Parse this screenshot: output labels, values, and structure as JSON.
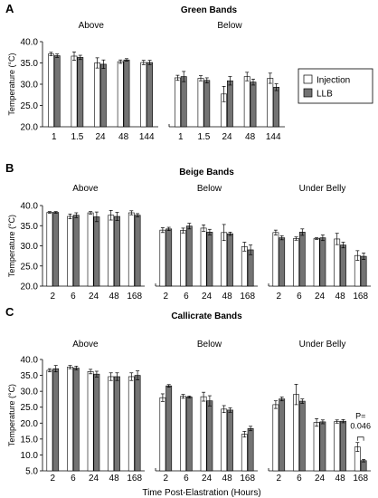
{
  "legend": {
    "items": [
      "Injection",
      "LLB"
    ],
    "colors": [
      "#ffffff",
      "#737373"
    ]
  },
  "xlabel": "Time Post-Elastration (Hours)",
  "chart_data": [
    {
      "type": "bar",
      "letter": "A",
      "title": "Green Bands",
      "ylabel": "Temperature (°C)",
      "ylim": [
        20,
        40
      ],
      "yticks": [
        "20.0",
        "25.0",
        "30.0",
        "35.0",
        "40.0"
      ],
      "grid": false,
      "legend_placement": "right",
      "groups": [
        {
          "name": "Above",
          "categories": [
            "1",
            "1.5",
            "24",
            "48",
            "144"
          ],
          "series": [
            {
              "name": "Injection",
              "values": [
                37.1,
                36.6,
                35.0,
                35.3,
                35.1
              ],
              "errors": [
                0.4,
                1.0,
                1.2,
                0.4,
                0.5
              ]
            },
            {
              "name": "LLB",
              "values": [
                36.7,
                36.3,
                34.7,
                35.7,
                35.1
              ],
              "errors": [
                0.4,
                0.5,
                1.0,
                0.3,
                0.5
              ]
            }
          ]
        },
        {
          "name": "Below",
          "categories": [
            "1",
            "1.5",
            "24",
            "48",
            "144"
          ],
          "series": [
            {
              "name": "Injection",
              "values": [
                31.5,
                31.4,
                27.7,
                31.8,
                31.4
              ],
              "errors": [
                0.6,
                0.6,
                1.8,
                1.0,
                1.2
              ]
            },
            {
              "name": "LLB",
              "values": [
                31.8,
                30.9,
                30.8,
                30.5,
                29.3
              ],
              "errors": [
                1.2,
                0.6,
                1.0,
                0.7,
                0.8
              ]
            }
          ]
        }
      ]
    },
    {
      "type": "bar",
      "letter": "B",
      "title": "Beige Bands",
      "ylabel": "Temperature (°C)",
      "ylim": [
        20,
        40
      ],
      "yticks": [
        "20.0",
        "25.0",
        "30.0",
        "35.0",
        "40.0"
      ],
      "grid": false,
      "groups": [
        {
          "name": "Above",
          "categories": [
            "2",
            "6",
            "24",
            "48",
            "168"
          ],
          "series": [
            {
              "name": "Injection",
              "values": [
                38.3,
                37.3,
                38.2,
                37.6,
                38.2
              ],
              "errors": [
                0.2,
                0.6,
                0.3,
                1.2,
                0.5
              ]
            },
            {
              "name": "LLB",
              "values": [
                38.3,
                37.6,
                37.2,
                37.3,
                37.6
              ],
              "errors": [
                0.2,
                0.6,
                1.2,
                1.0,
                0.4
              ]
            }
          ]
        },
        {
          "name": "Below",
          "categories": [
            "2",
            "6",
            "24",
            "48",
            "168"
          ],
          "series": [
            {
              "name": "Injection",
              "values": [
                33.9,
                33.8,
                34.4,
                33.3,
                29.8
              ],
              "errors": [
                0.6,
                0.6,
                0.8,
                2.0,
                1.1
              ]
            },
            {
              "name": "LLB",
              "values": [
                34.2,
                34.9,
                33.4,
                33.0,
                29.0
              ],
              "errors": [
                0.4,
                0.7,
                0.7,
                0.4,
                1.2
              ]
            }
          ]
        },
        {
          "name": "Under Belly",
          "categories": [
            "2",
            "6",
            "24",
            "48",
            "168"
          ],
          "series": [
            {
              "name": "Injection",
              "values": [
                33.3,
                31.8,
                31.8,
                31.7,
                27.6
              ],
              "errors": [
                0.6,
                0.4,
                0.2,
                1.4,
                1.2
              ]
            },
            {
              "name": "LLB",
              "values": [
                32.0,
                33.4,
                32.0,
                30.2,
                27.4
              ],
              "errors": [
                0.5,
                0.8,
                0.7,
                0.7,
                0.8
              ]
            }
          ]
        }
      ]
    },
    {
      "type": "bar",
      "letter": "C",
      "title": "Callicrate Bands",
      "ylabel": "Temperature (°C)",
      "ylim": [
        5,
        40
      ],
      "yticks": [
        "5.0",
        "10.0",
        "15.0",
        "20.0",
        "25.0",
        "30.0",
        "35.0",
        "40.0"
      ],
      "grid": false,
      "groups": [
        {
          "name": "Above",
          "categories": [
            "2",
            "6",
            "24",
            "48",
            "168"
          ],
          "series": [
            {
              "name": "Injection",
              "values": [
                36.6,
                37.6,
                36.2,
                34.6,
                34.6
              ],
              "errors": [
                0.5,
                0.5,
                0.7,
                1.2,
                1.2
              ]
            },
            {
              "name": "LLB",
              "values": [
                37.1,
                37.3,
                35.4,
                34.6,
                35.0
              ],
              "errors": [
                1.0,
                0.6,
                0.9,
                1.2,
                1.4
              ]
            }
          ]
        },
        {
          "name": "Below",
          "categories": [
            "2",
            "6",
            "24",
            "48",
            "168"
          ],
          "series": [
            {
              "name": "Injection",
              "values": [
                28.0,
                28.4,
                28.3,
                24.4,
                16.5
              ],
              "errors": [
                1.2,
                0.6,
                1.4,
                1.1,
                0.9
              ]
            },
            {
              "name": "LLB",
              "values": [
                31.7,
                28.2,
                27.0,
                24.1,
                18.3
              ],
              "errors": [
                0.4,
                0.3,
                1.6,
                0.7,
                0.7
              ]
            }
          ]
        },
        {
          "name": "Under Belly",
          "categories": [
            "2",
            "6",
            "24",
            "48",
            "168"
          ],
          "series": [
            {
              "name": "Injection",
              "values": [
                25.8,
                29.0,
                20.2,
                20.5,
                12.5
              ],
              "errors": [
                1.2,
                3.2,
                1.2,
                0.5,
                1.4
              ]
            },
            {
              "name": "LLB",
              "values": [
                27.6,
                26.9,
                20.4,
                20.6,
                8.2
              ],
              "errors": [
                0.6,
                0.7,
                0.6,
                0.5,
                0.4
              ]
            }
          ]
        }
      ],
      "annotation": {
        "text": [
          "P=",
          "0.046"
        ],
        "group": 2,
        "category": 4
      }
    }
  ]
}
